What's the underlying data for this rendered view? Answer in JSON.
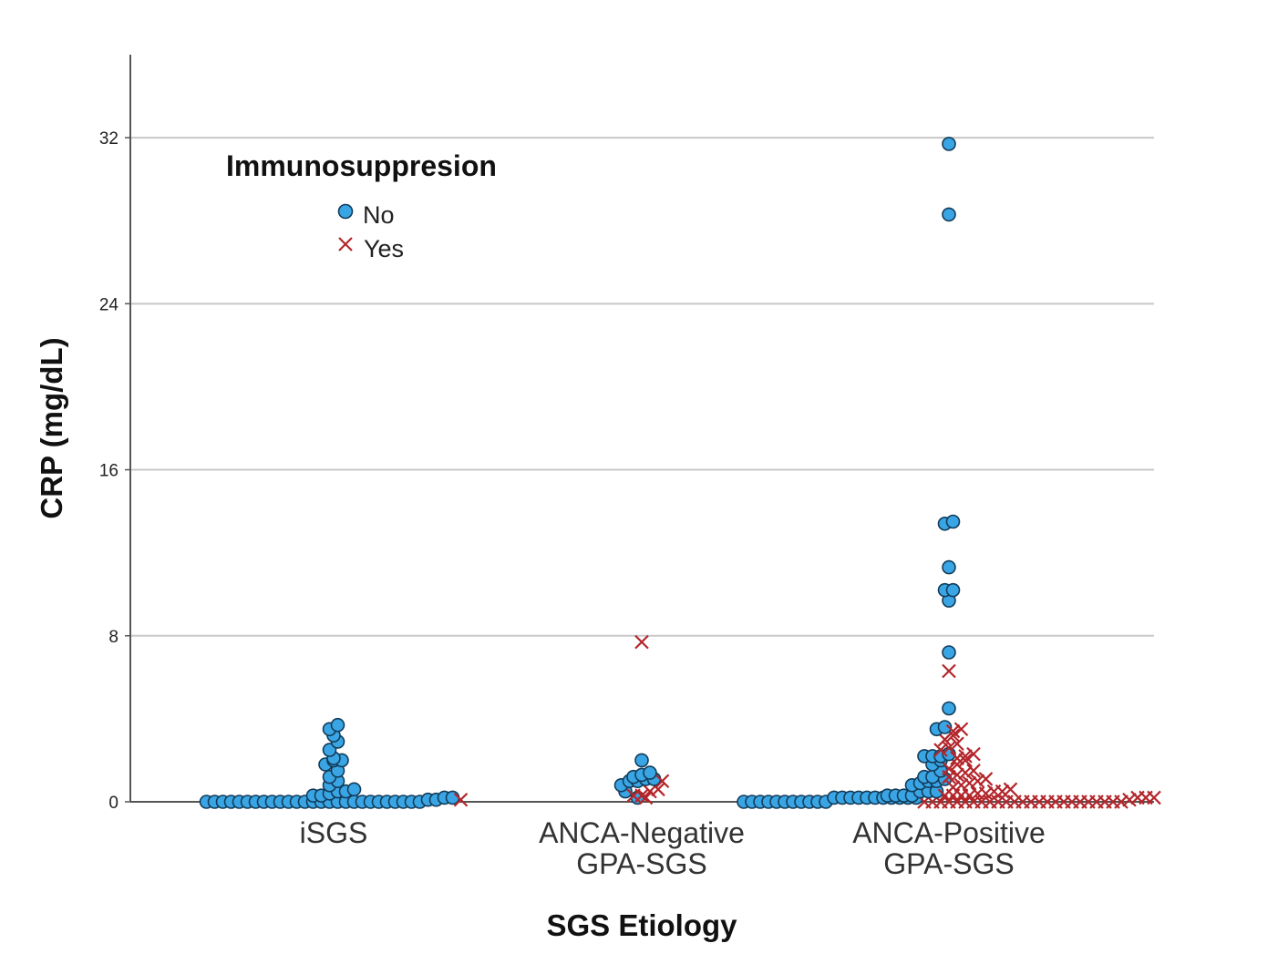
{
  "chart_data": {
    "type": "scatter",
    "title": "",
    "xlabel": "SGS Etiology",
    "ylabel": "CRP (mg/dL)",
    "ylim": [
      0,
      36
    ],
    "yticks": [
      0,
      8,
      16,
      24,
      32
    ],
    "grid": true,
    "categories": [
      {
        "line1": "iSGS",
        "line2": ""
      },
      {
        "line1": "ANCA-Negative",
        "line2": "GPA-SGS"
      },
      {
        "line1": "ANCA-Positive",
        "line2": "GPA-SGS"
      }
    ],
    "legend": {
      "title": "Immunosuppresion",
      "position": "top-left",
      "entries": [
        {
          "label": "No",
          "marker": "circle",
          "color": "#3aa5e4",
          "edge": "#123c5a"
        },
        {
          "label": "Yes",
          "marker": "x",
          "color": "#b3262b"
        }
      ]
    },
    "series": [
      {
        "name": "No",
        "points": [
          {
            "category": "iSGS",
            "values": [
              0,
              0,
              0,
              0,
              0,
              0,
              0,
              0,
              0,
              0,
              0,
              0,
              0,
              0,
              0,
              0,
              0,
              0,
              0,
              0,
              0,
              0,
              0,
              0,
              0,
              0,
              0,
              0.1,
              0.1,
              0.2,
              0.2,
              0.3,
              0.3,
              0.4,
              0.5,
              0.5,
              0.6,
              0.8,
              1.0,
              1.2,
              1.5,
              1.8,
              2.0,
              2.0,
              2.1,
              2.5,
              2.9,
              3.2,
              3.5,
              3.7
            ]
          },
          {
            "category": "ANCA-Negative GPA-SGS",
            "values": [
              0.2,
              0.5,
              0.8,
              1.0,
              1.0,
              1.1,
              1.1,
              1.2,
              1.3,
              1.4,
              2.0
            ]
          },
          {
            "category": "ANCA-Positive GPA-SGS",
            "values": [
              0,
              0,
              0,
              0,
              0,
              0,
              0,
              0,
              0,
              0,
              0,
              0.2,
              0.2,
              0.2,
              0.2,
              0.2,
              0.2,
              0.2,
              0.2,
              0.2,
              0.2,
              0.2,
              0.3,
              0.3,
              0.3,
              0.3,
              0.5,
              0.5,
              0.5,
              0.8,
              0.9,
              1.0,
              1.0,
              1.1,
              1.2,
              1.2,
              1.5,
              1.8,
              2.0,
              2.2,
              2.2,
              2.2,
              2.3,
              3.5,
              3.6,
              4.5,
              7.2,
              9.7,
              10.2,
              10.2,
              11.3,
              13.4,
              13.5,
              28.3,
              31.7
            ]
          }
        ]
      },
      {
        "name": "Yes",
        "points": [
          {
            "category": "iSGS",
            "values": [
              0.1
            ]
          },
          {
            "category": "ANCA-Negative GPA-SGS",
            "values": [
              0.2,
              0.3,
              0.3,
              0.5,
              0.6,
              1.0,
              7.7
            ]
          },
          {
            "category": "ANCA-Positive GPA-SGS",
            "values": [
              0,
              0,
              0,
              0,
              0,
              0,
              0,
              0,
              0,
              0,
              0,
              0,
              0,
              0,
              0,
              0,
              0,
              0,
              0,
              0,
              0,
              0,
              0,
              0,
              0,
              0.1,
              0.2,
              0.2,
              0.2,
              0.3,
              0.3,
              0.3,
              0.3,
              0.4,
              0.4,
              0.5,
              0.5,
              0.6,
              0.7,
              0.8,
              0.9,
              1.0,
              1.1,
              1.2,
              1.3,
              1.4,
              1.5,
              1.6,
              1.8,
              2.0,
              2.1,
              2.2,
              2.3,
              2.5,
              2.6,
              2.8,
              3.0,
              3.2,
              3.4,
              3.5,
              6.3
            ]
          }
        ]
      }
    ]
  }
}
